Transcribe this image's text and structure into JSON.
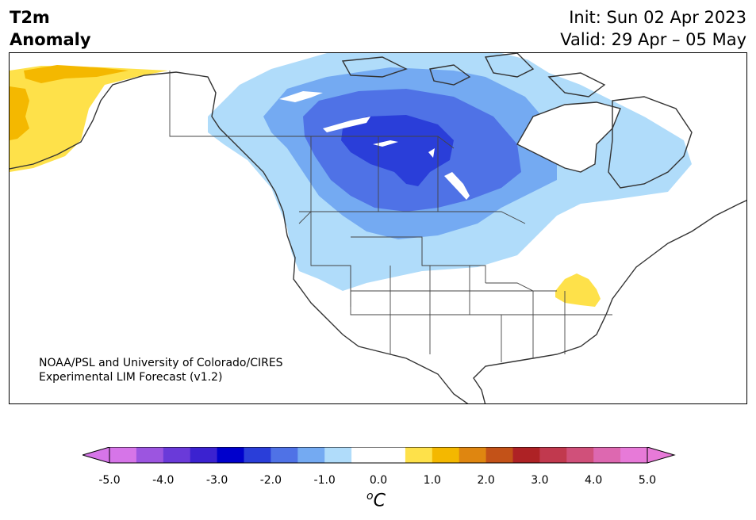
{
  "title": {
    "line1": "T2m",
    "line2": "Anomaly"
  },
  "forecast": {
    "init": "Init: Sun 02 Apr 2023",
    "valid": "Valid: 29 Apr – 05 May"
  },
  "credit": {
    "line1": "NOAA/PSL and University of Colorado/CIRES",
    "line2": "Experimental LIM Forecast (v1.2)"
  },
  "colorbar": {
    "unit_prefix": "o",
    "unit": "C",
    "tick_labels": [
      "-5.0",
      "-4.0",
      "-3.0",
      "-2.0",
      "-1.0",
      "0.0",
      "1.0",
      "2.0",
      "3.0",
      "4.0",
      "5.0"
    ],
    "colors": [
      "#d675e8",
      "#9c55e0",
      "#6a3ad9",
      "#3b22d0",
      "#0000cc",
      "#2a3ed9",
      "#4f72e6",
      "#74aaf2",
      "#b0dcfa",
      "#ffffff",
      "#ffffff",
      "#fee14a",
      "#f4b800",
      "#df8610",
      "#c35218",
      "#ae2225",
      "#c1394e",
      "#d0507a",
      "#dd68b0",
      "#e77ad8"
    ],
    "under_color": "#d675e8",
    "over_color": "#e77ad8"
  },
  "map_regions": {
    "colors": {
      "anom_neg_1": "#b0dcfa",
      "anom_neg_1_5": "#74aaf2",
      "anom_neg_2": "#4f72e6",
      "anom_neg_2_5": "#2a3ed9",
      "anom_pos_1": "#fee14a",
      "anom_pos_1_5": "#f4b800"
    }
  }
}
